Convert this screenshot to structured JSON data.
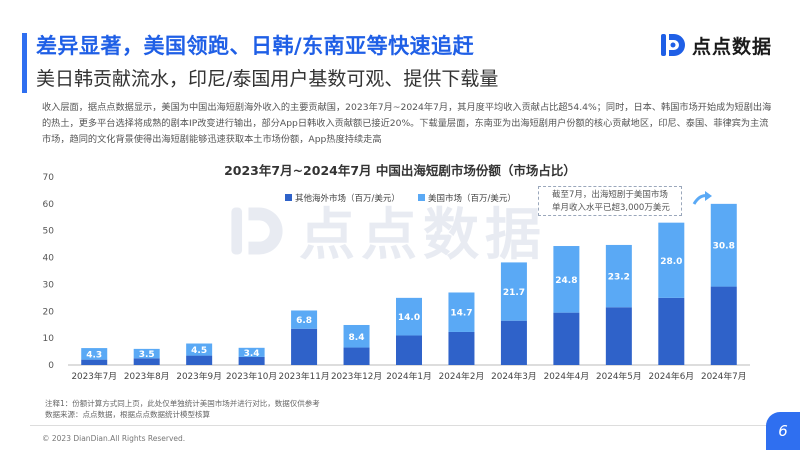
{
  "header": {
    "title": "差异显著，美国领跑、日韩/东南亚等快速追赶",
    "subtitle": "美日韩贡献流水，印尼/泰国用户基数可观、提供下载量"
  },
  "logo": {
    "text": "点点数据",
    "mark": "dd-logo-icon"
  },
  "body_text": "收入层面，据点点数据显示，美国为中国出海短剧海外收入的主要贡献国，2023年7月~2024年7月，其月度平均收入贡献占比超54.4%；同时，日本、韩国市场开始成为短剧出海的热土，更多平台选择将成熟的剧本IP改变进行输出，部分App日韩收入贡献额已接近20%。下载量层面，东南亚为出海短剧用户份额的核心贡献地区，印尼、泰国、菲律宾为主流市场，趋同的文化背景使得出海短剧能够迅速获取本土市场份额，App热度持续走高",
  "callout": {
    "line1": "截至7月，出海短剧于美国市场",
    "line2": "单月收入水平已超3,000万美元"
  },
  "colors": {
    "accent": "#2f6ff0",
    "other_markets": "#2f62c9",
    "us_market": "#5aa9f5"
  },
  "chart_data": {
    "type": "bar",
    "stacked": true,
    "title": "2023年7月~2024年7月 中国出海短剧市场份额（市场占比）",
    "categories": [
      "2023年7月",
      "2023年8月",
      "2023年9月",
      "2023年10月",
      "2023年11月",
      "2023年12月",
      "2024年1月",
      "2024年2月",
      "2024年3月",
      "2024年4月",
      "2024年5月",
      "2024年6月",
      "2024年7月"
    ],
    "series": [
      {
        "name": "其他海外市场（百万/美元）",
        "values": [
          2.0,
          2.5,
          3.5,
          3.0,
          13.5,
          6.5,
          11.0,
          12.3,
          16.5,
          19.5,
          21.5,
          25.0,
          29.2
        ]
      },
      {
        "name": "美国市场（百万/美元）",
        "values": [
          4.3,
          3.5,
          4.5,
          3.4,
          6.8,
          8.4,
          14.0,
          14.7,
          21.7,
          24.8,
          23.2,
          28.0,
          30.8
        ]
      }
    ],
    "data_labels": [
      "4.3",
      "3.5",
      "4.5",
      "3.4",
      "6.8",
      "8.4",
      "14.0",
      "14.7",
      "21.7",
      "24.8",
      "23.2",
      "28.0",
      "30.8"
    ],
    "yticks": [
      "0",
      "10",
      "20",
      "30",
      "40",
      "50",
      "60",
      "70"
    ],
    "ylim": [
      0,
      70
    ],
    "legend_position": "top"
  },
  "footnotes": {
    "note1": "注释1：份额计算方式同上页，此处仅单独统计美国市场并进行对比，数据仅供参考",
    "note2": "数据来源：点点数据，根据点点数据统计模型核算"
  },
  "footer": {
    "copyright": "© 2023 DianDian.All Rights Reserved.",
    "page_number": "6"
  }
}
